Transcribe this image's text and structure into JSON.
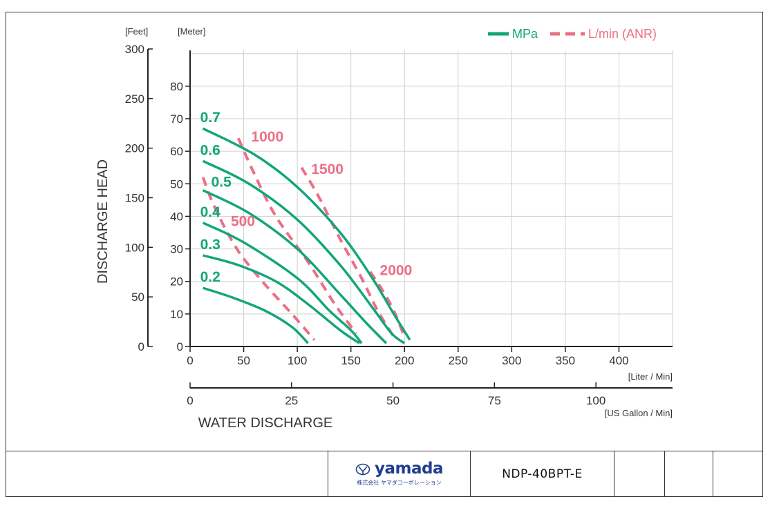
{
  "chart_data": {
    "type": "line",
    "ylabel": "DISCHARGE HEAD",
    "xlabel": "WATER DISCHARGE",
    "y_units": {
      "left": "[Feet]",
      "right": "[Meter]"
    },
    "x_units": {
      "top": "[Liter / Min]",
      "bottom": "[US Gallon / Min]"
    },
    "feet_ticks": [
      "0",
      "50",
      "100",
      "150",
      "200",
      "250",
      "300"
    ],
    "meter_ticks": [
      "0",
      "10",
      "20",
      "30",
      "40",
      "50",
      "60",
      "70",
      "80"
    ],
    "lpm_ticks": [
      "0",
      "50",
      "100",
      "150",
      "200",
      "250",
      "300",
      "350",
      "400"
    ],
    "gpm_ticks": [
      "0",
      "25",
      "50",
      "75",
      "100"
    ],
    "xlim_lpm": [
      0,
      450
    ],
    "ylim_m": [
      0,
      91
    ],
    "grid": true,
    "legend_position": "top-right",
    "legend": [
      {
        "label": "MPa",
        "style": "solid",
        "color": "#12a67a"
      },
      {
        "label": "L/min (ANR)",
        "style": "dashed",
        "color": "#ec6f86"
      }
    ],
    "pressure_curves": [
      {
        "label": "0.7",
        "x": [
          12,
          60,
          100,
          140,
          170,
          190,
          205
        ],
        "y": [
          67,
          59,
          49,
          35,
          21,
          10,
          2
        ]
      },
      {
        "label": "0.6",
        "x": [
          12,
          55,
          100,
          140,
          170,
          188,
          200
        ],
        "y": [
          57,
          50,
          39,
          25,
          12,
          4,
          1
        ]
      },
      {
        "label": "0.5",
        "x": [
          12,
          55,
          100,
          140,
          165,
          183
        ],
        "y": [
          48,
          41,
          30,
          16,
          7,
          1
        ]
      },
      {
        "label": "0.4",
        "x": [
          12,
          50,
          100,
          130,
          150,
          160
        ],
        "y": [
          38,
          32,
          21,
          11,
          5,
          1
        ]
      },
      {
        "label": "0.3",
        "x": [
          12,
          45,
          80,
          110,
          140,
          158
        ],
        "y": [
          28,
          25,
          20,
          13,
          5,
          1
        ]
      },
      {
        "label": "0.2",
        "x": [
          12,
          40,
          70,
          95,
          110
        ],
        "y": [
          18,
          15,
          11,
          6,
          1
        ]
      }
    ],
    "air_curves": [
      {
        "label": "500",
        "x": [
          12,
          20,
          30,
          40,
          50,
          70,
          95,
          116
        ],
        "y": [
          52,
          45,
          38,
          32,
          27,
          19,
          10,
          2
        ]
      },
      {
        "label": "1000",
        "x": [
          45,
          60,
          80,
          110,
          135,
          155
        ],
        "y": [
          64,
          53,
          40,
          26,
          13,
          4
        ]
      },
      {
        "label": "1500",
        "x": [
          104,
          120,
          140,
          160,
          175,
          190
        ],
        "y": [
          55,
          46,
          33,
          21,
          11,
          3
        ]
      },
      {
        "label": "2000",
        "x": [
          168,
          180,
          190,
          200
        ],
        "y": [
          23,
          17,
          11,
          3
        ]
      }
    ],
    "colors": {
      "pressure": "#12a67a",
      "air": "#ec6f86",
      "grid": "#cfcfcf",
      "axis": "#222222",
      "text": "#333333"
    }
  },
  "footer": {
    "logo_word": "yamada",
    "logo_subtitle": "株式会社 ヤマダコーポレーション",
    "model": "NDP-40BPT-E"
  }
}
